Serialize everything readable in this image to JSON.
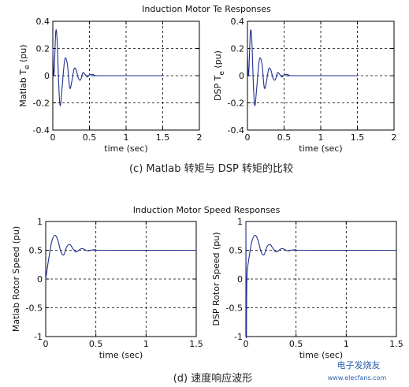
{
  "figure": {
    "caption_c": "(c)   Matlab 转矩与 DSP 转矩的比较",
    "caption_d": "(d) 速度响应波形",
    "watermark": "电子发烧友",
    "watermark_url": "www.elecfans.com"
  },
  "chart_data": [
    {
      "id": "te-matlab",
      "type": "line",
      "title": "Induction Motor Te Responses",
      "xlabel": "time (sec)",
      "ylabel": "Matlab T",
      "ylabel_sub": "e",
      "ylabel_suffix": " (pu)",
      "xlim": [
        0,
        2
      ],
      "ylim": [
        -0.4,
        0.4
      ],
      "xticks": [
        0,
        0.5,
        1,
        1.5,
        2
      ],
      "xtick_labels": [
        "0",
        "0.5",
        "1",
        "1.5",
        "2"
      ],
      "yticks": [
        -0.4,
        -0.2,
        0,
        0.2,
        0.4
      ],
      "ytick_labels": [
        "-0.4",
        "-0.2",
        "0",
        "0.2",
        "0.4"
      ],
      "grid": true,
      "series": [
        {
          "x": [
            0,
            0.015,
            0.04,
            0.06,
            0.08,
            0.1,
            0.125,
            0.15,
            0.17,
            0.2,
            0.23,
            0.26,
            0.29,
            0.32,
            0.35,
            0.38,
            0.41,
            0.44,
            0.47,
            0.5,
            0.54,
            0.58,
            0.62,
            1.5
          ],
          "y": [
            0.2,
            0.0,
            0.32,
            0.25,
            -0.05,
            -0.22,
            -0.1,
            0.06,
            0.13,
            0.08,
            -0.09,
            -0.04,
            0.05,
            0.04,
            -0.02,
            -0.03,
            0.02,
            0.01,
            -0.01,
            0.005,
            0.01,
            0.0,
            0.0,
            0.0
          ]
        }
      ]
    },
    {
      "id": "te-dsp",
      "type": "line",
      "title": "",
      "xlabel": "time (sec)",
      "ylabel": "DSP T",
      "ylabel_sub": "e",
      "ylabel_suffix": " (pu)",
      "xlim": [
        0,
        2
      ],
      "ylim": [
        -0.4,
        0.4
      ],
      "xticks": [
        0,
        0.5,
        1,
        1.5,
        2
      ],
      "xtick_labels": [
        "0",
        "0.5",
        "1",
        "1.5",
        "2"
      ],
      "yticks": [
        -0.4,
        -0.2,
        0,
        0.2,
        0.4
      ],
      "ytick_labels": [
        "-0.4",
        "-0.2",
        "0",
        "0.2",
        "0.4"
      ],
      "grid": true,
      "series": [
        {
          "x": [
            0,
            0.015,
            0.04,
            0.06,
            0.08,
            0.1,
            0.125,
            0.15,
            0.17,
            0.2,
            0.23,
            0.26,
            0.29,
            0.32,
            0.35,
            0.38,
            0.41,
            0.44,
            0.47,
            0.5,
            0.54,
            0.58,
            0.62,
            1.5
          ],
          "y": [
            0.2,
            0.0,
            0.32,
            0.25,
            -0.05,
            -0.22,
            -0.1,
            0.06,
            0.13,
            0.08,
            -0.09,
            -0.04,
            0.05,
            0.04,
            -0.02,
            -0.03,
            0.02,
            0.01,
            -0.01,
            0.005,
            0.01,
            0.0,
            0.0,
            0.0
          ]
        }
      ]
    },
    {
      "id": "speed-matlab",
      "type": "line",
      "title": "Induction Motor Speed Responses",
      "xlabel": "time (sec)",
      "ylabel": "Matlab Rotor Speed (pu)",
      "xlim": [
        0,
        1.5
      ],
      "ylim": [
        -1,
        1
      ],
      "xticks": [
        0,
        0.5,
        1,
        1.5
      ],
      "xtick_labels": [
        "0",
        "0.5",
        "1",
        "1.5"
      ],
      "yticks": [
        -1,
        -0.5,
        0,
        0.5,
        1
      ],
      "ytick_labels": [
        "-1",
        "-0.5",
        "0",
        "0.5",
        "1"
      ],
      "grid": true,
      "series": [
        {
          "x": [
            0,
            0.03,
            0.06,
            0.09,
            0.12,
            0.15,
            0.18,
            0.21,
            0.24,
            0.27,
            0.3,
            0.33,
            0.36,
            0.39,
            0.42,
            0.45,
            0.5,
            0.55,
            1.5
          ],
          "y": [
            0,
            0.35,
            0.65,
            0.76,
            0.68,
            0.48,
            0.42,
            0.56,
            0.6,
            0.53,
            0.47,
            0.5,
            0.53,
            0.51,
            0.49,
            0.5,
            0.51,
            0.5,
            0.5
          ]
        }
      ]
    },
    {
      "id": "speed-dsp",
      "type": "line",
      "title": "",
      "xlabel": "time (sec)",
      "ylabel": "DSP Rotor Speed (pu)",
      "xlim": [
        0,
        1.5
      ],
      "ylim": [
        -1,
        1
      ],
      "xticks": [
        0,
        0.5,
        1,
        1.5
      ],
      "xtick_labels": [
        "0",
        "0.5",
        "1",
        "1.5"
      ],
      "yticks": [
        -1,
        -0.5,
        0,
        0.5,
        1
      ],
      "ytick_labels": [
        "-1",
        "-0.5",
        "0",
        "0.5",
        "1"
      ],
      "grid": true,
      "series": [
        {
          "x": [
            0,
            0.005,
            0.01,
            0.03,
            0.06,
            0.09,
            0.12,
            0.15,
            0.18,
            0.21,
            0.24,
            0.27,
            0.3,
            0.33,
            0.36,
            0.39,
            0.42,
            0.45,
            0.5,
            0.55,
            1.5
          ],
          "y": [
            1,
            -1,
            0,
            0.35,
            0.65,
            0.76,
            0.68,
            0.48,
            0.42,
            0.56,
            0.6,
            0.53,
            0.47,
            0.5,
            0.53,
            0.51,
            0.49,
            0.5,
            0.51,
            0.5,
            0.5
          ]
        }
      ]
    }
  ]
}
